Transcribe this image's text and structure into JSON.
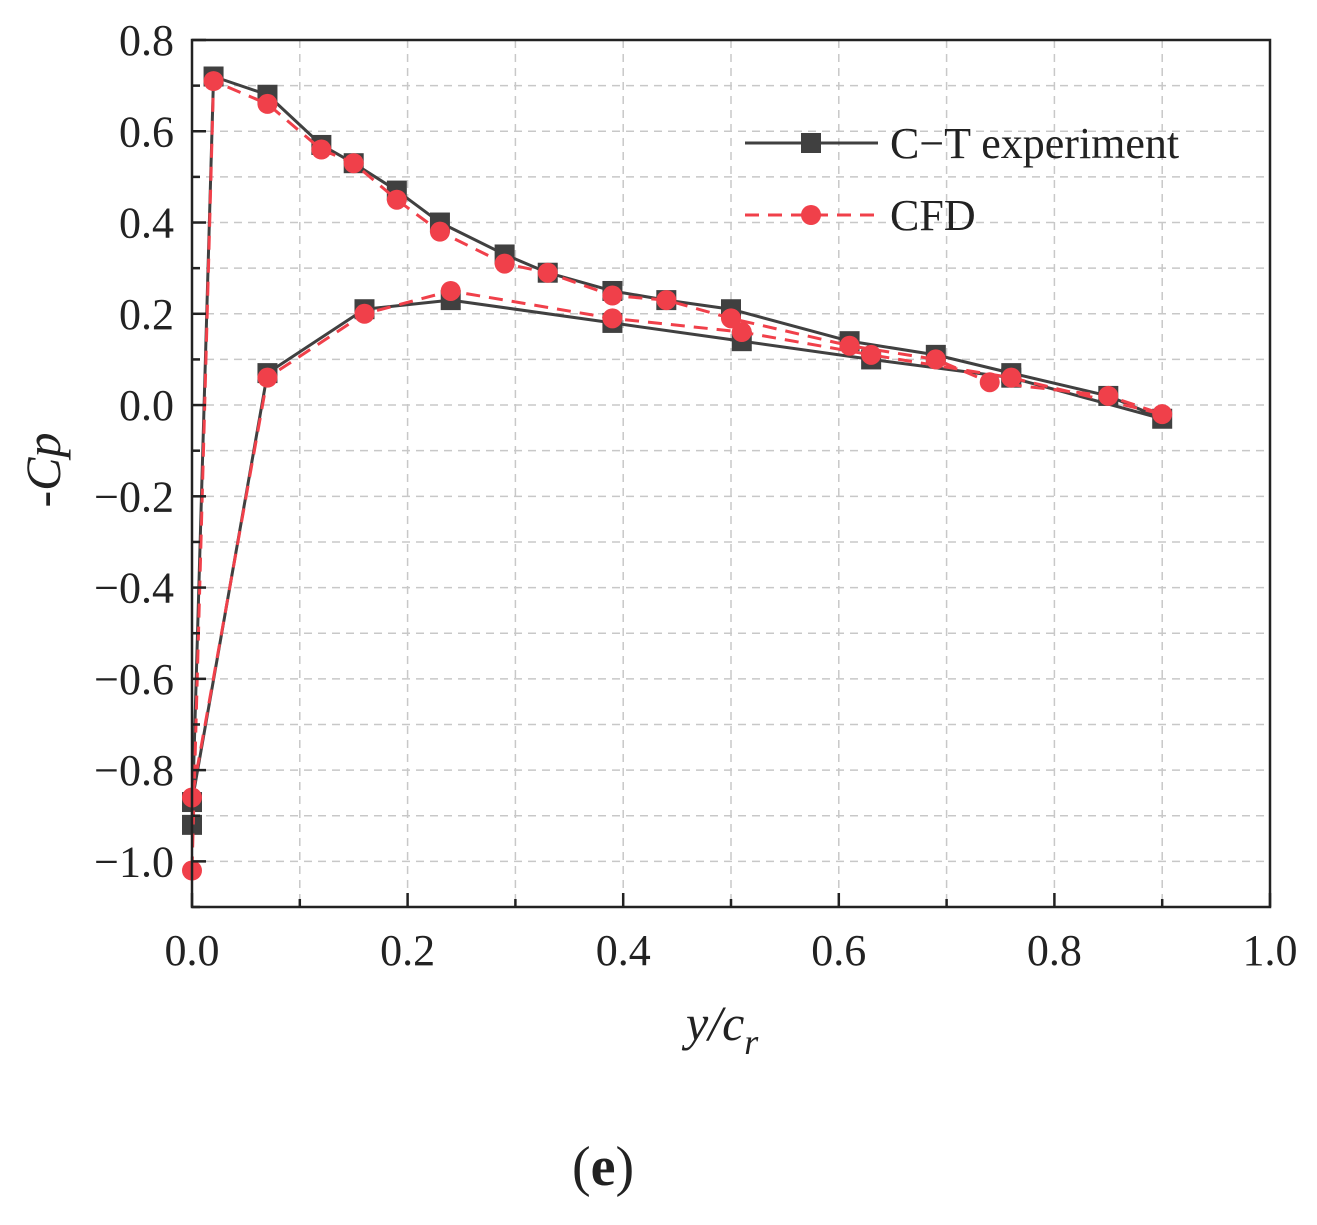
{
  "chart_data": {
    "type": "line",
    "panel_label": {
      "open": "(",
      "letter": "e",
      "close": ")"
    },
    "xlabel": {
      "main": "y/c",
      "sub": "r"
    },
    "ylabel": "-Cp",
    "xlim": [
      0.0,
      1.0
    ],
    "ylim": [
      -1.1,
      0.8
    ],
    "xticks": [
      0.0,
      0.2,
      0.4,
      0.6,
      0.8,
      1.0
    ],
    "xtick_labels": [
      "0.0",
      "0.2",
      "0.4",
      "0.6",
      "0.8",
      "1.0"
    ],
    "yticks": [
      0.8,
      0.6,
      0.4,
      0.2,
      0.0,
      -0.2,
      -0.4,
      -0.6,
      -0.8,
      -1.0
    ],
    "ytick_labels": [
      "0.8",
      "0.6",
      "0.4",
      "0.2",
      "0.0",
      "−0.2",
      "−0.4",
      "−0.6",
      "−0.8",
      "−1.0"
    ],
    "grid": true,
    "legend_position": "top-right",
    "series": [
      {
        "name": "C−T experiment",
        "color": "#404040",
        "marker": "square",
        "line_style": "solid",
        "points": [
          [
            0.0,
            -0.92
          ],
          [
            0.02,
            0.72
          ],
          [
            0.07,
            0.68
          ],
          [
            0.12,
            0.57
          ],
          [
            0.15,
            0.53
          ],
          [
            0.19,
            0.47
          ],
          [
            0.23,
            0.4
          ],
          [
            0.29,
            0.33
          ],
          [
            0.33,
            0.29
          ],
          [
            0.39,
            0.25
          ],
          [
            0.44,
            0.23
          ],
          [
            0.5,
            0.21
          ],
          [
            0.61,
            0.14
          ],
          [
            0.69,
            0.11
          ],
          [
            0.76,
            0.07
          ],
          [
            0.85,
            0.02
          ],
          [
            0.9,
            -0.03
          ],
          [
            0.76,
            0.06
          ],
          [
            0.63,
            0.1
          ],
          [
            0.51,
            0.14
          ],
          [
            0.39,
            0.18
          ],
          [
            0.24,
            0.23
          ],
          [
            0.16,
            0.21
          ],
          [
            0.07,
            0.07
          ],
          [
            0.0,
            -0.87
          ]
        ]
      },
      {
        "name": "CFD",
        "color": "#f0404a",
        "marker": "circle",
        "line_style": "dashed",
        "points": [
          [
            0.0,
            -1.02
          ],
          [
            0.02,
            0.71
          ],
          [
            0.07,
            0.66
          ],
          [
            0.12,
            0.56
          ],
          [
            0.15,
            0.53
          ],
          [
            0.19,
            0.45
          ],
          [
            0.23,
            0.38
          ],
          [
            0.29,
            0.31
          ],
          [
            0.33,
            0.29
          ],
          [
            0.39,
            0.24
          ],
          [
            0.44,
            0.23
          ],
          [
            0.5,
            0.19
          ],
          [
            0.61,
            0.13
          ],
          [
            0.69,
            0.1
          ],
          [
            0.74,
            0.05
          ],
          [
            0.85,
            0.02
          ],
          [
            0.9,
            -0.02
          ],
          [
            0.76,
            0.06
          ],
          [
            0.63,
            0.11
          ],
          [
            0.51,
            0.16
          ],
          [
            0.39,
            0.19
          ],
          [
            0.24,
            0.25
          ],
          [
            0.16,
            0.2
          ],
          [
            0.07,
            0.06
          ],
          [
            0.0,
            -0.86
          ]
        ]
      }
    ]
  }
}
